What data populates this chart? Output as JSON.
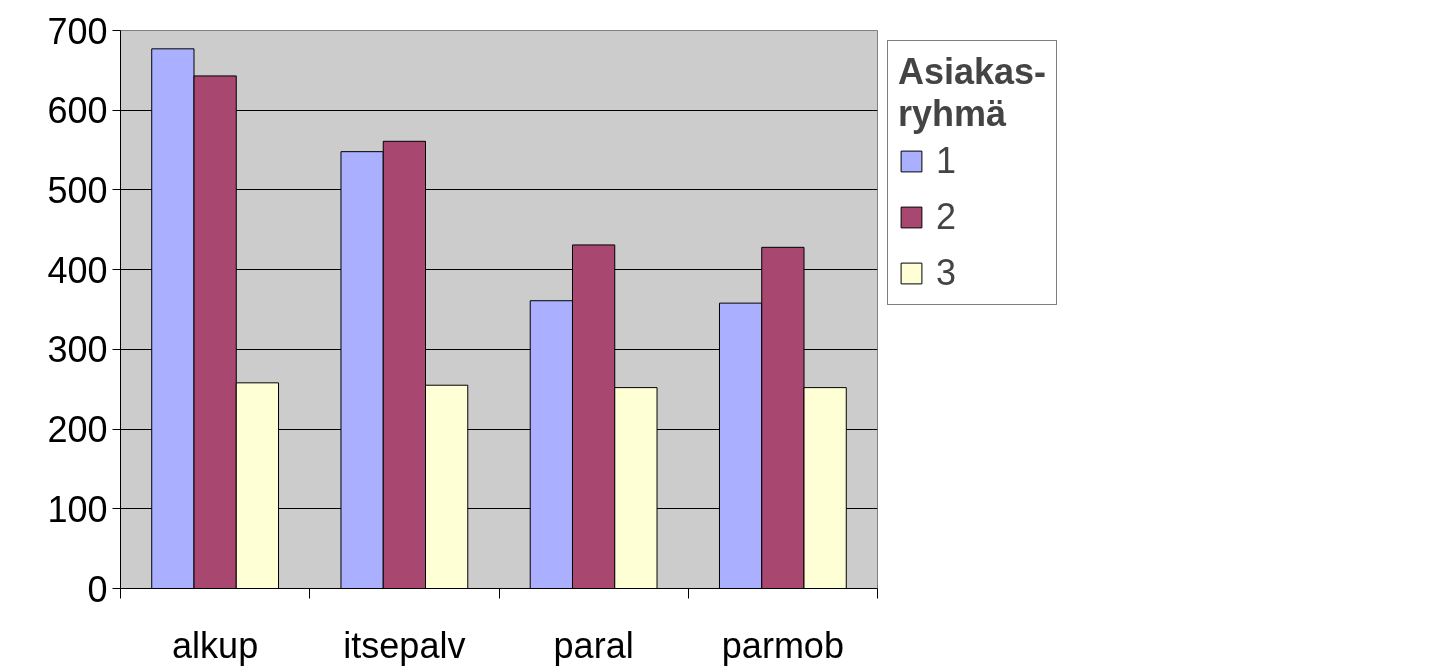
{
  "chart_data": {
    "type": "bar",
    "categories": [
      "alkup",
      "itsepalv",
      "paral",
      "parmob"
    ],
    "series": [
      {
        "name": "1",
        "color": "#aab0ff",
        "values": [
          677,
          548,
          361,
          358
        ]
      },
      {
        "name": "2",
        "color": "#a8476f",
        "values": [
          643,
          561,
          431,
          428
        ]
      },
      {
        "name": "3",
        "color": "#ffffd6",
        "values": [
          258,
          255,
          252,
          252
        ]
      }
    ],
    "ylim": [
      0,
      700
    ],
    "yticks": [
      0,
      100,
      200,
      300,
      400,
      500,
      600,
      700
    ],
    "grid": "y",
    "legend": "right",
    "legend_title": "Asiakas-ryhmä"
  }
}
